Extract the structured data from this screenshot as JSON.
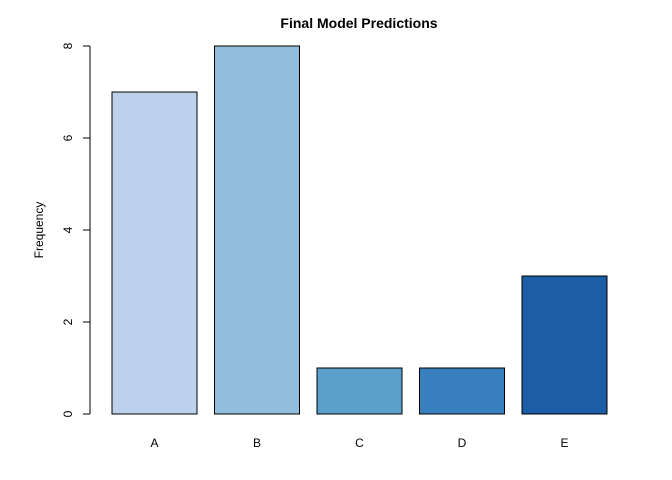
{
  "chart_data": {
    "type": "bar",
    "title": "Final Model Predictions",
    "xlabel": "",
    "ylabel": "Frequency",
    "categories": [
      "A",
      "B",
      "C",
      "D",
      "E"
    ],
    "values": [
      7,
      8,
      1,
      1,
      3
    ],
    "colors": [
      "#bdd1ec",
      "#92bedd",
      "#5b9fcd",
      "#387fbd",
      "#1c5da7"
    ],
    "ylim": [
      0,
      8
    ],
    "yticks": [
      0,
      2,
      4,
      6,
      8
    ],
    "ytick_labels": [
      "0",
      "2",
      "4",
      "6",
      "8"
    ],
    "grid": false,
    "legend": "none"
  }
}
